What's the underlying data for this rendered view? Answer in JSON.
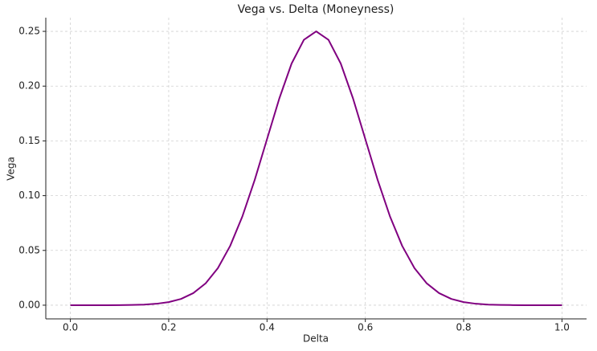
{
  "chart_data": {
    "type": "line",
    "title": "Vega vs. Delta (Moneyness)",
    "x_label": "Delta",
    "y_label": "Vega",
    "x": [
      0,
      0.025,
      0.05,
      0.075,
      0.1,
      0.125,
      0.15,
      0.175,
      0.2,
      0.225,
      0.25,
      0.275,
      0.3,
      0.325,
      0.35,
      0.375,
      0.4,
      0.425,
      0.45,
      0.475,
      0.5,
      0.525,
      0.55,
      0.575,
      0.6,
      0.625,
      0.65,
      0.675,
      0.7,
      0.725,
      0.75,
      0.775,
      0.8,
      0.825,
      0.85,
      0.875,
      0.9,
      0.925,
      0.95,
      0.975,
      1
    ],
    "series": [
      {
        "name": "Vega",
        "color": "#800080",
        "values": [
          0,
          0,
          0,
          0,
          0.0001,
          0.0002,
          0.0005,
          0.0013,
          0.0028,
          0.0057,
          0.011,
          0.0199,
          0.0338,
          0.0541,
          0.0812,
          0.1144,
          0.1516,
          0.1887,
          0.2206,
          0.2423,
          0.25,
          0.2423,
          0.2206,
          0.1887,
          0.1516,
          0.1144,
          0.0812,
          0.0541,
          0.0338,
          0.0199,
          0.011,
          0.0057,
          0.0028,
          0.0013,
          0.0005,
          0.0002,
          0.0001,
          0,
          0,
          0,
          0
        ]
      }
    ],
    "xlim": [
      -0.05,
      1.05
    ],
    "ylim": [
      -0.0125,
      0.2625
    ],
    "xticks": [
      {
        "value": 0,
        "label": "0.0"
      },
      {
        "value": 0.2,
        "label": "0.2"
      },
      {
        "value": 0.4,
        "label": "0.4"
      },
      {
        "value": 0.6,
        "label": "0.6"
      },
      {
        "value": 0.8,
        "label": "0.8"
      },
      {
        "value": 1,
        "label": "1.0"
      }
    ],
    "yticks": [
      {
        "value": 0,
        "label": "0.00"
      },
      {
        "value": 0.05,
        "label": "0.05"
      },
      {
        "value": 0.1,
        "label": "0.10"
      },
      {
        "value": 0.15,
        "label": "0.15"
      },
      {
        "value": 0.2,
        "label": "0.20"
      },
      {
        "value": 0.25,
        "label": "0.25"
      }
    ],
    "grid": true
  }
}
